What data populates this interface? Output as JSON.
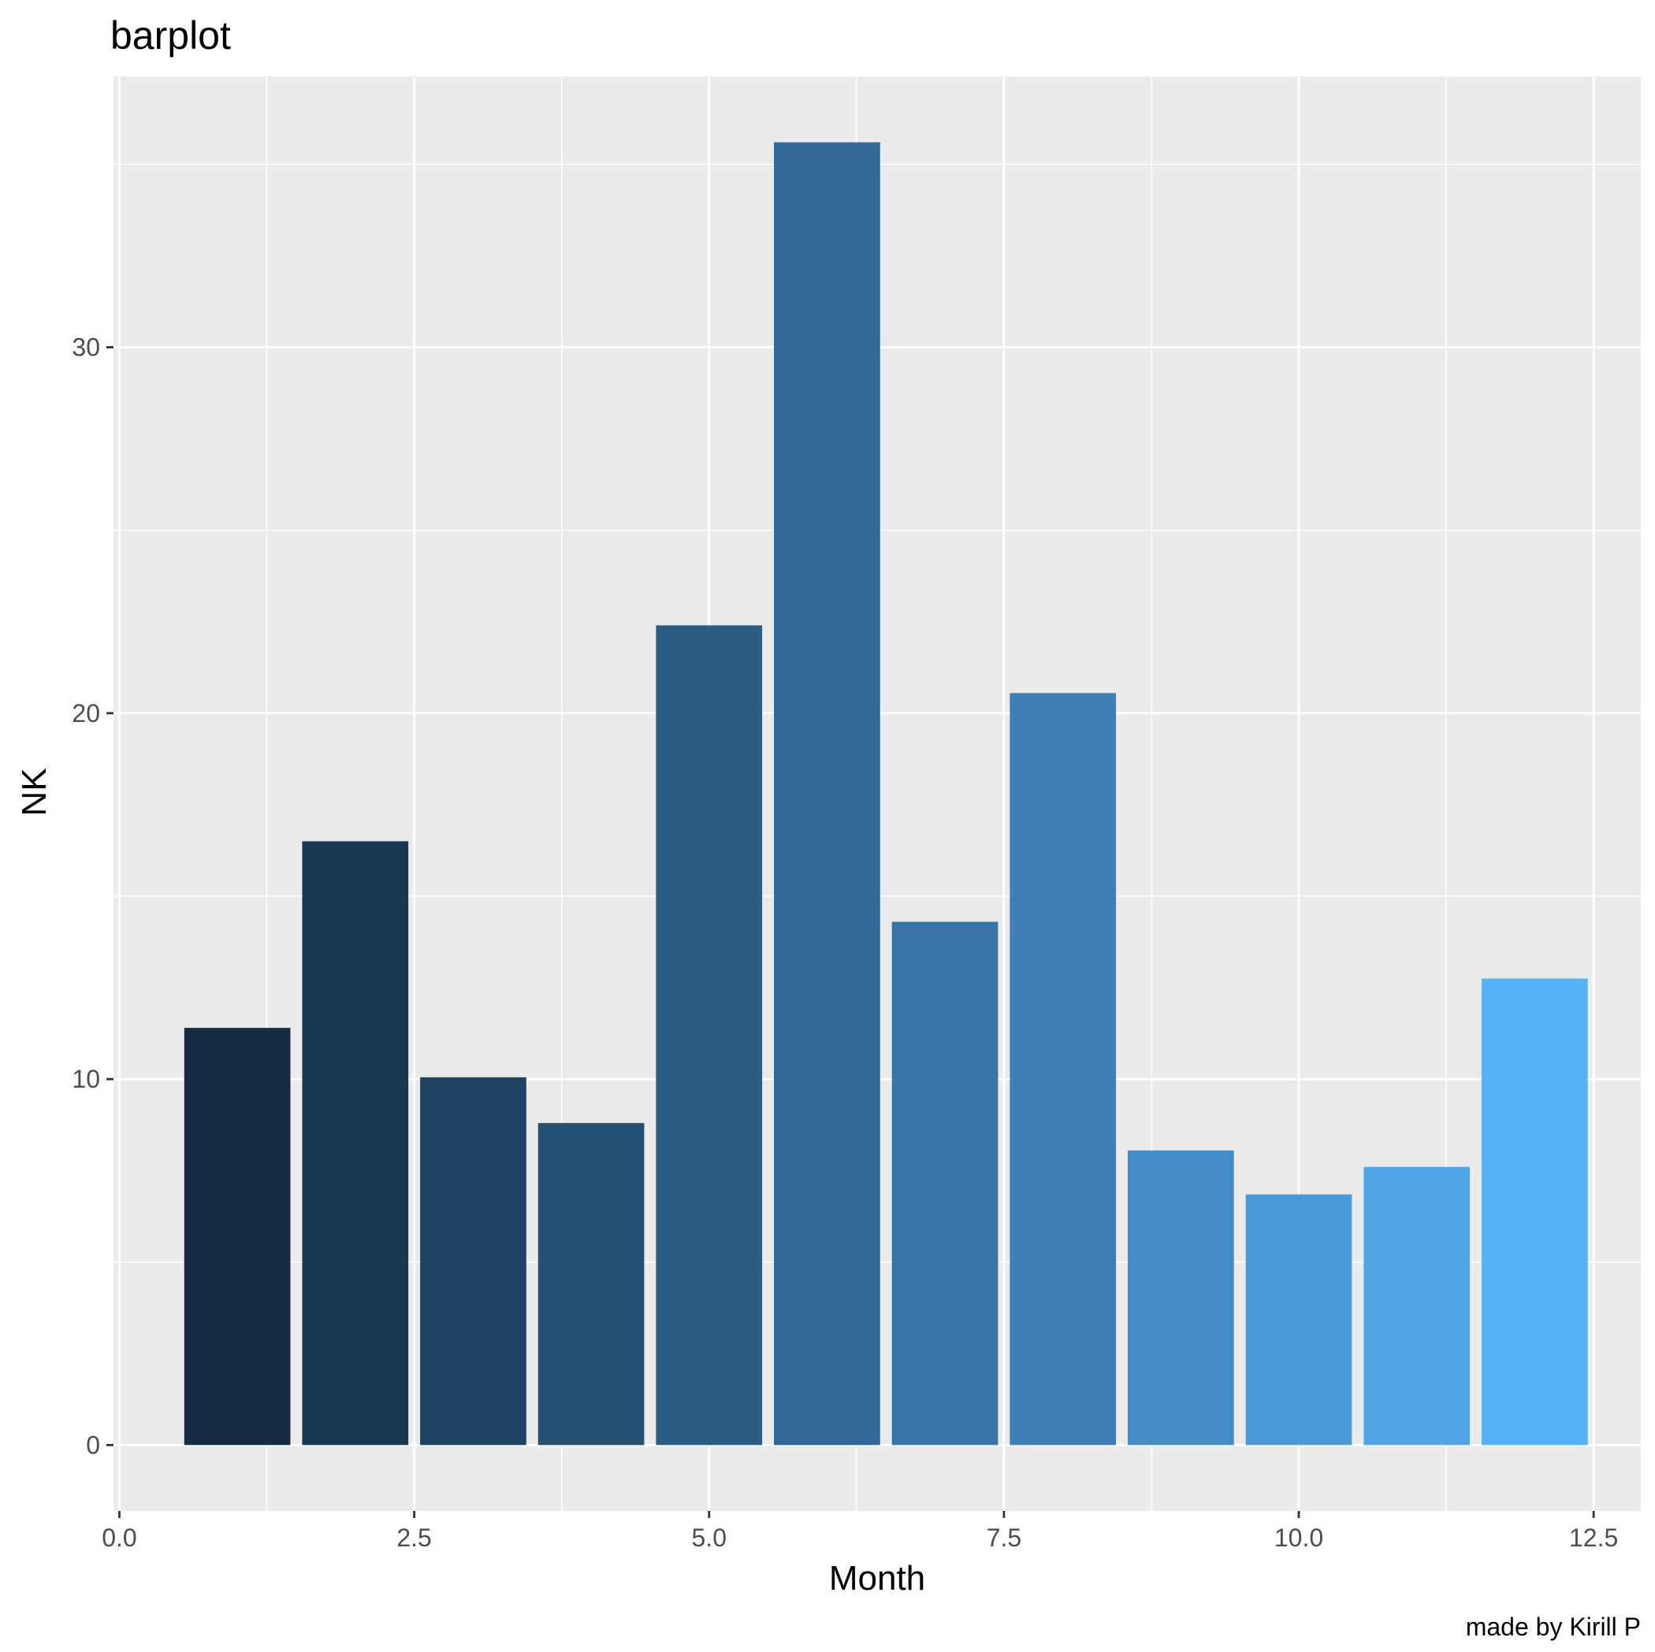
{
  "chart_data": {
    "type": "bar",
    "title": "barplot",
    "xlabel": "Month",
    "ylabel": "NK",
    "caption": "made by Kirill P",
    "x": [
      1,
      2,
      3,
      4,
      5,
      6,
      7,
      8,
      9,
      10,
      11,
      12
    ],
    "values": [
      11.4,
      16.5,
      10.05,
      8.8,
      22.4,
      35.6,
      14.3,
      20.55,
      8.05,
      6.85,
      7.6,
      12.75
    ],
    "xlim": [
      -0.05,
      12.9
    ],
    "ylim": [
      -1.8,
      37.4
    ],
    "xticks": [
      0,
      2.5,
      5,
      7.5,
      10,
      12.5
    ],
    "xtick_labels": [
      "0.0",
      "2.5",
      "5.0",
      "7.5",
      "10.0",
      "12.5"
    ],
    "yticks": [
      0,
      10,
      20,
      30
    ],
    "ytick_labels": [
      "0",
      "10",
      "20",
      "30"
    ],
    "bar_width": 0.9,
    "grid": true,
    "legend": "none",
    "colors": {
      "panel_background": "#ebebeb",
      "grid": "#ffffff",
      "bar_low": "#132b43",
      "bar_high": "#56b1f7",
      "tick_text": "#4d4d4d",
      "tick_mark": "#333333"
    }
  }
}
